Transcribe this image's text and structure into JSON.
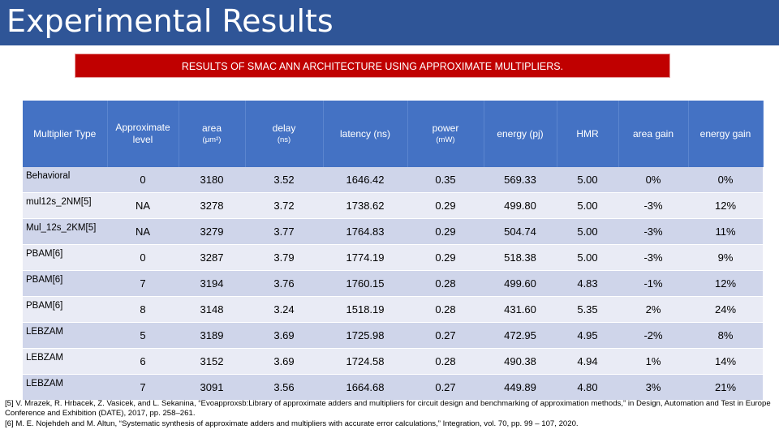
{
  "slide": {
    "title": "Experimental Results",
    "caption": "RESULTS OF SMAC ANN ARCHITECTURE USING APPROXIMATE MULTIPLIERS."
  },
  "table": {
    "headers": [
      {
        "label": "Multiplier Type",
        "unit": ""
      },
      {
        "label": "Approximate level",
        "unit": ""
      },
      {
        "label": "area",
        "unit": "(μm²)"
      },
      {
        "label": "delay",
        "unit": "(ns)"
      },
      {
        "label": "latency (ns)",
        "unit": ""
      },
      {
        "label": "power",
        "unit": "(mW)"
      },
      {
        "label": "energy (pj)",
        "unit": ""
      },
      {
        "label": "HMR",
        "unit": ""
      },
      {
        "label": "area gain",
        "unit": ""
      },
      {
        "label": "energy gain",
        "unit": ""
      }
    ],
    "rows": [
      [
        "Behavioral",
        "0",
        "3180",
        "3.52",
        "1646.42",
        "0.35",
        "569.33",
        "5.00",
        "0%",
        "0%"
      ],
      [
        "mul12s_2NM[5]",
        "NA",
        "3278",
        "3.72",
        "1738.62",
        "0.29",
        "499.80",
        "5.00",
        "-3%",
        "12%"
      ],
      [
        "Mul_12s_2KM[5]",
        "NA",
        "3279",
        "3.77",
        "1764.83",
        "0.29",
        "504.74",
        "5.00",
        "-3%",
        "11%"
      ],
      [
        "PBAM[6]",
        "0",
        "3287",
        "3.79",
        "1774.19",
        "0.29",
        "518.38",
        "5.00",
        "-3%",
        "9%"
      ],
      [
        "PBAM[6]",
        "7",
        "3194",
        "3.76",
        "1760.15",
        "0.28",
        "499.60",
        "4.83",
        "-1%",
        "12%"
      ],
      [
        "PBAM[6]",
        "8",
        "3148",
        "3.24",
        "1518.19",
        "0.28",
        "431.60",
        "5.35",
        "2%",
        "24%"
      ],
      [
        "LEBZAM",
        "5",
        "3189",
        "3.69",
        "1725.98",
        "0.27",
        "472.95",
        "4.95",
        "-2%",
        "8%"
      ],
      [
        "LEBZAM",
        "6",
        "3152",
        "3.69",
        "1724.58",
        "0.28",
        "490.38",
        "4.94",
        "1%",
        "14%"
      ],
      [
        "LEBZAM",
        "7",
        "3091",
        "3.56",
        "1664.68",
        "0.27",
        "449.89",
        "4.80",
        "3%",
        "21%"
      ]
    ]
  },
  "references": [
    "[5] V. Mrazek, R. Hrbacek, Z. Vasicek, and L. Sekanina, “Evoapproxsb:Library of approximate adders and multipliers for circuit design and benchmarking of approximation methods,” in Design, Automation and Test in Europe Conference and Exhibition (DATE), 2017, pp. 258–261.",
    "[6] M. E. Nojehdeh and M. Altun, “Systematic synthesis of approximate adders and multipliers with accurate error calculations,” Integration, vol. 70, pp. 99 – 107, 2020."
  ],
  "colors": {
    "header_bg": "#2F5597",
    "caption_bg": "#C00000",
    "table_header_bg": "#4472C4",
    "row_odd": "#CFD5EA",
    "row_even": "#E9EBF5"
  }
}
